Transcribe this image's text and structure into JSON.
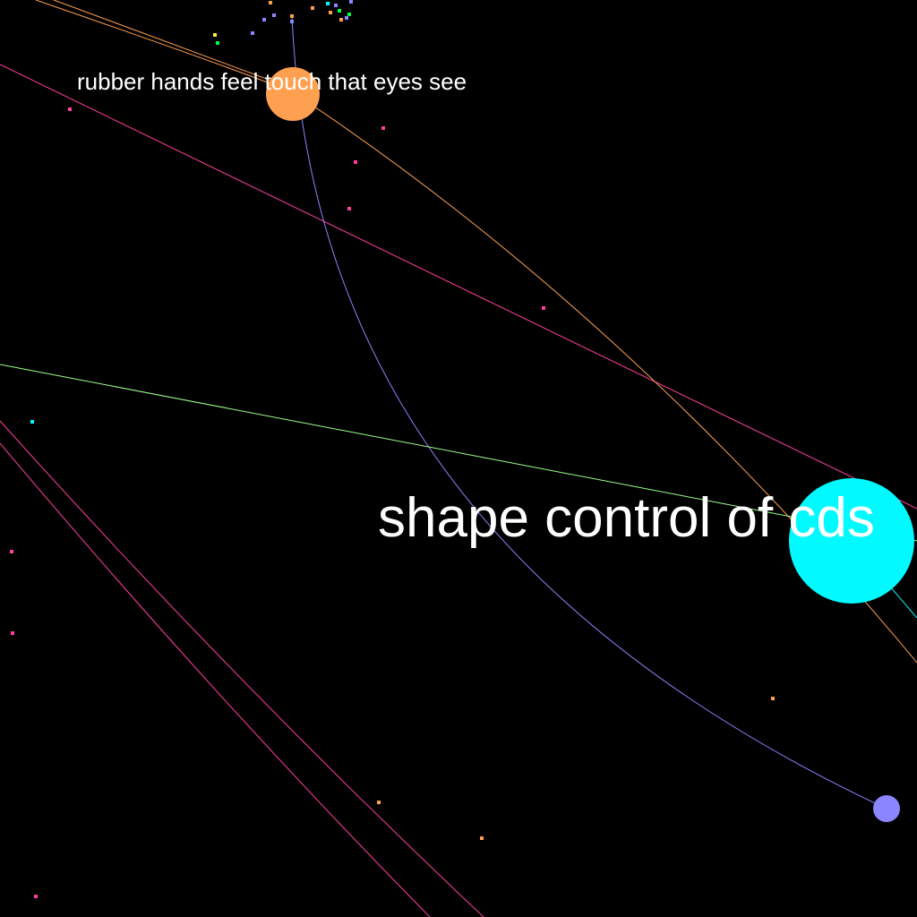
{
  "labels": {
    "small": "rubber hands feel touch that eyes see",
    "large": "shape control of cds"
  },
  "palette": {
    "background": "#000000",
    "text": "#ffffff",
    "orange": "#ff9f50",
    "cyan": "#00faff",
    "violet": "#8b85ff",
    "pink": "#ff3ea0",
    "green": "#9cff8c",
    "dot_green": "#00ff40",
    "dot_yellow": "#ffee33"
  },
  "nodes": [
    {
      "name": "orange-node",
      "color": "#ff9f50"
    },
    {
      "name": "cyan-node",
      "color": "#00faff"
    },
    {
      "name": "violet-node",
      "color": "#8b85ff"
    }
  ]
}
